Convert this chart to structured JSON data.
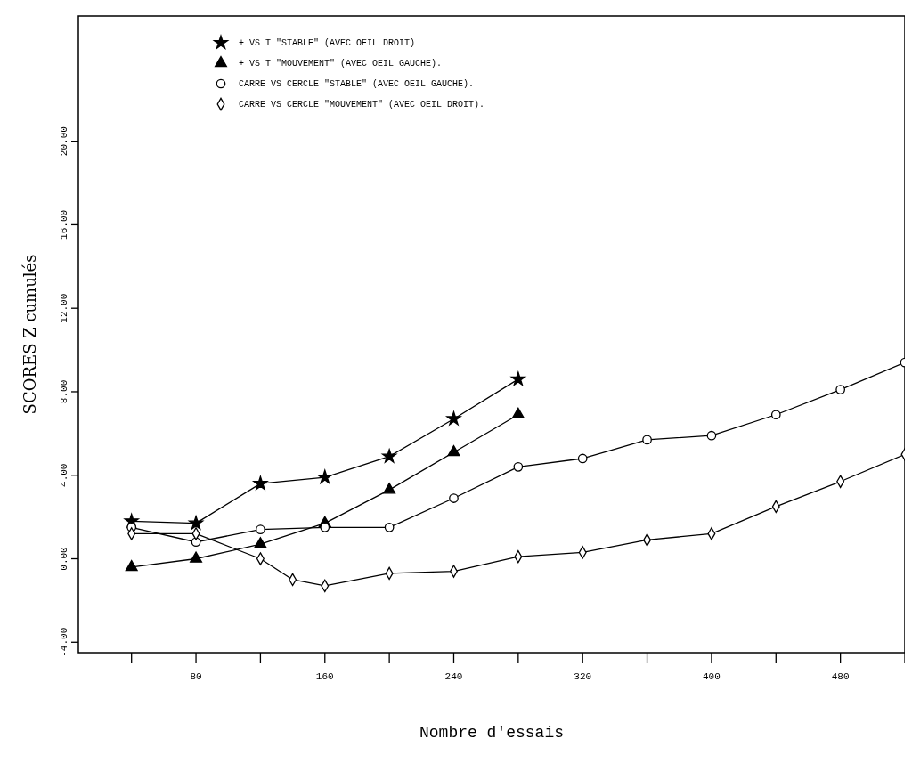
{
  "chart_data": {
    "type": "line",
    "xlabel": "Nombre d'essais",
    "ylabel": "SCORES Z cumulés",
    "xlim": [
      7,
      520
    ],
    "xticks": [
      {
        "value": 40,
        "label": null
      },
      80,
      {
        "value": 120,
        "label": null
      },
      160,
      {
        "value": 200,
        "label": null
      },
      240,
      {
        "value": 280,
        "label": null
      },
      320,
      {
        "value": 360,
        "label": null
      },
      400,
      {
        "value": 440,
        "label": null
      },
      480,
      {
        "value": 520,
        "label": null
      }
    ],
    "ylim": [
      -4.5,
      26
    ],
    "yticks": [
      {
        "value": -4,
        "label": "-4.00"
      },
      {
        "value": 0,
        "label": "0.00"
      },
      {
        "value": 4,
        "label": "4.00"
      },
      {
        "value": 8,
        "label": "8.00"
      },
      {
        "value": 12,
        "label": "12.00"
      },
      {
        "value": 16,
        "label": "16.00"
      },
      {
        "value": 20,
        "label": "20.00"
      }
    ],
    "grid": false,
    "legend": "top left",
    "line_style": "solid",
    "series": [
      {
        "name": "+ VS T \"STABLE\" (AVEC OEIL DROIT)",
        "color": "#000000",
        "marker": "star",
        "x": [
          40,
          80,
          120,
          160,
          200,
          240,
          280
        ],
        "values": [
          1.8,
          1.7,
          3.6,
          3.9,
          4.9,
          6.7,
          8.6
        ]
      },
      {
        "name": "+ VS T \"MOUVEMENT\" (AVEC OEIL GAUCHE).",
        "color": "#000000",
        "marker": "triangle",
        "x": [
          40,
          80,
          120,
          160,
          200,
          240,
          280
        ],
        "values": [
          -0.4,
          0.0,
          0.7,
          1.7,
          3.3,
          5.1,
          6.9
        ]
      },
      {
        "name": "CARRE VS CERCLE \"STABLE\" (AVEC OEIL GAUCHE).",
        "color": "#000000",
        "marker": "circle",
        "x": [
          40,
          80,
          120,
          160,
          200,
          240,
          280,
          320,
          360,
          400,
          440,
          480,
          520
        ],
        "values": [
          1.5,
          0.8,
          1.4,
          1.5,
          1.5,
          2.9,
          4.4,
          4.8,
          5.7,
          5.9,
          6.9,
          8.1,
          9.4
        ]
      },
      {
        "name": "CARRE VS CERCLE \"MOUVEMENT\" (AVEC OEIL DROIT).",
        "color": "#000000",
        "marker": "diamond",
        "x": [
          40,
          80,
          120,
          140,
          160,
          200,
          240,
          280,
          320,
          360,
          400,
          440,
          480,
          520
        ],
        "values": [
          1.2,
          1.2,
          0.0,
          -1.0,
          -1.3,
          -0.7,
          -0.6,
          0.1,
          0.3,
          0.9,
          1.2,
          2.5,
          3.7,
          5.0
        ]
      }
    ]
  }
}
